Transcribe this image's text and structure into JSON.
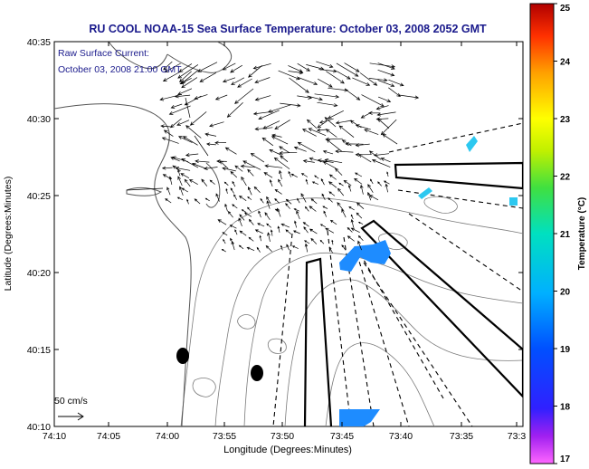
{
  "title": "RU COOL  NOAA-15  Sea Surface Temperature:  October 03, 2008 2052 GMT",
  "current_legend": {
    "line1": "Raw Surface Current:",
    "line2": "October 03, 2008 21:00 GMT",
    "scale_label": "50 cm/s"
  },
  "axes": {
    "xlabel": "Longitude (Degrees:Minutes)",
    "ylabel": "Latitude (Degrees:Minutes)",
    "x_ticks": [
      "74:10",
      "74:05",
      "74:00",
      "73:55",
      "73:50",
      "73:45",
      "73:40",
      "73:35",
      "73:3"
    ],
    "y_ticks": [
      "40:35",
      "40:30",
      "40:25",
      "40:20",
      "40:15",
      "40:10"
    ]
  },
  "colorbar": {
    "label": "Temperature (°C)",
    "ticks": [
      "25",
      "24",
      "23",
      "22",
      "21",
      "20",
      "19",
      "18",
      "17"
    ],
    "min": 17,
    "max": 25
  },
  "colors": {
    "title_text": "#1a1a8c",
    "legend_text": "#1a1a8c",
    "sst_patch": "#1e8cff",
    "sst_patch_light": "#2cc8f0",
    "vector": "#000000",
    "contour": "#7a7a7a"
  }
}
